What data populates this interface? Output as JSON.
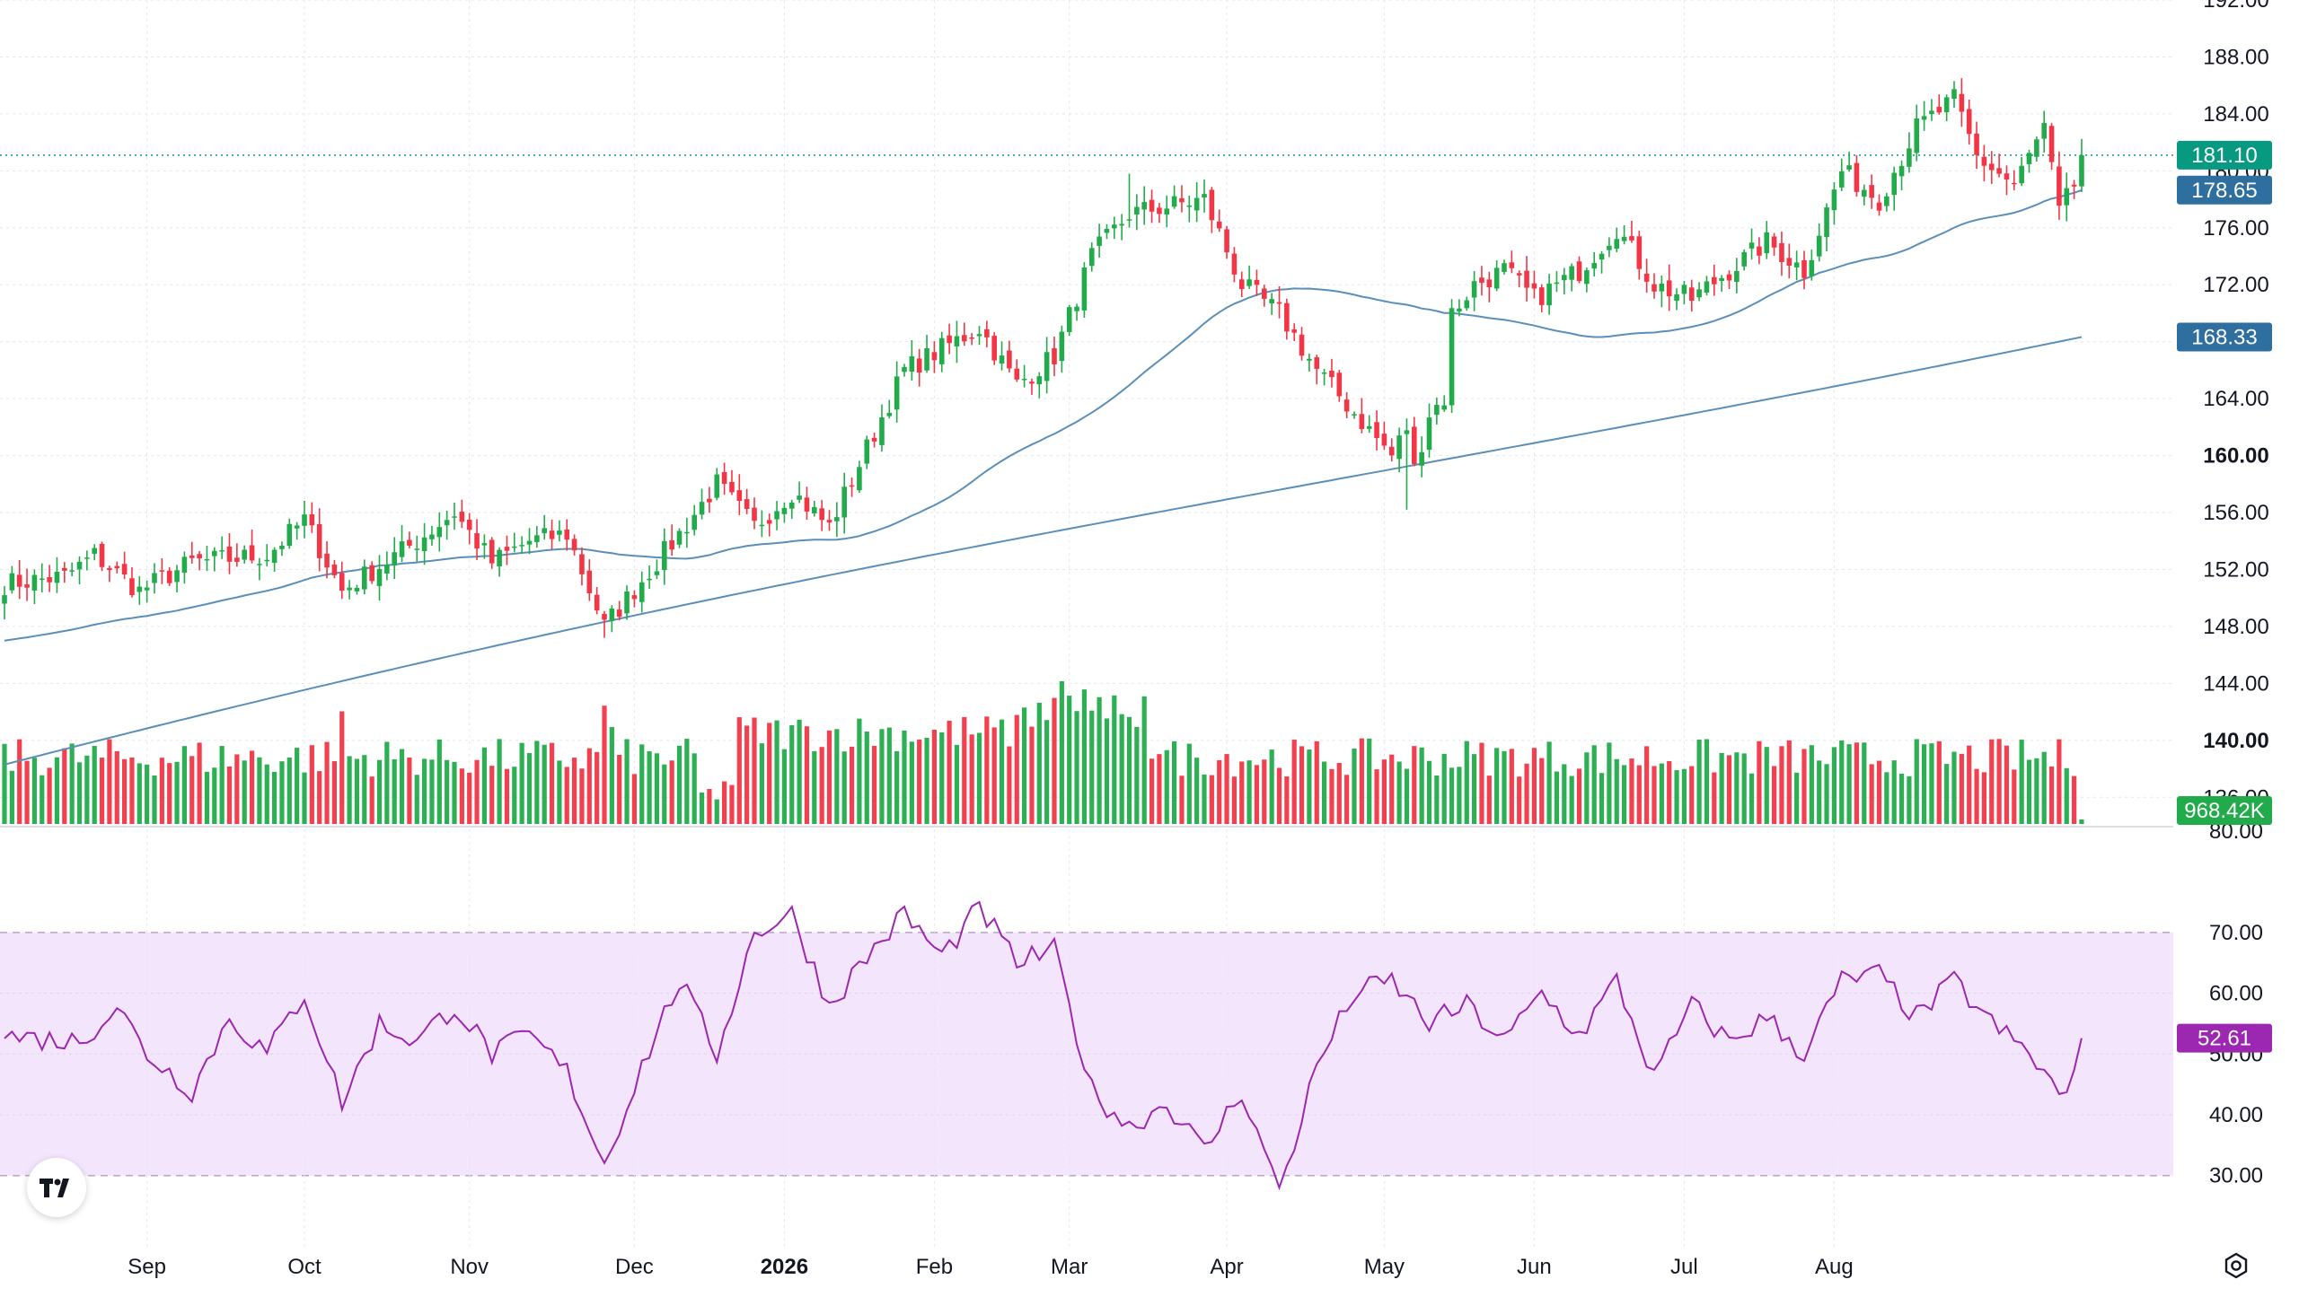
{
  "chart_data": {
    "type": "candlestick",
    "title": "",
    "x_tick_labels": [
      "Sep",
      "Oct",
      "Nov",
      "Dec",
      "2026",
      "Feb",
      "Mar",
      "Apr",
      "May",
      "Jun",
      "Jul",
      "Aug"
    ],
    "price_axis": {
      "ylim": [
        134,
        192
      ],
      "tick_labels": [
        "192.00",
        "188.00",
        "184.00",
        "180.00",
        "176.00",
        "172.00",
        "168.00",
        "164.00",
        "160.00",
        "156.00",
        "152.00",
        "148.00",
        "144.00",
        "140.00",
        "136.00"
      ],
      "bold_ticks": [
        "160.00",
        "140.00"
      ]
    },
    "current_price": {
      "label": "181.10",
      "value": 181.1,
      "color": "#089981"
    },
    "ma_fast_badge": {
      "label": "178.65",
      "value": 178.65,
      "color": "#2f6fa0"
    },
    "ma_slow_badge": {
      "label": "168.33",
      "value": 168.33,
      "color": "#2f6fa0"
    },
    "volume": {
      "last_label": "968.42K",
      "axis_label": "80.00",
      "ylim": [
        0,
        1.45
      ]
    },
    "rsi": {
      "ylim": [
        27,
        75
      ],
      "upper": 70,
      "lower": 30,
      "tick_labels": [
        "70.00",
        "60.00",
        "50.00",
        "40.00",
        "30.00"
      ],
      "last_label": "52.61",
      "last_value": 52.61,
      "line_color": "#9c27b0",
      "band_color": "#f3e5fc"
    },
    "colors": {
      "up": "#22ab4a",
      "down": "#f23645",
      "ma": "#5b8fb9",
      "grid": "#e4e6eb"
    },
    "pivots": [
      [
        0,
        151
      ],
      [
        8,
        151.5
      ],
      [
        12,
        153
      ],
      [
        18,
        150.5
      ],
      [
        25,
        152.5
      ],
      [
        35,
        153
      ],
      [
        40,
        155.5
      ],
      [
        45,
        150.5
      ],
      [
        55,
        154
      ],
      [
        60,
        156
      ],
      [
        65,
        152.5
      ],
      [
        70,
        154
      ],
      [
        75,
        154.5
      ],
      [
        80,
        148
      ],
      [
        90,
        154.5
      ],
      [
        95,
        158
      ],
      [
        100,
        155
      ],
      [
        105,
        157.5
      ],
      [
        110,
        155
      ],
      [
        120,
        166
      ],
      [
        130,
        169
      ],
      [
        135,
        165
      ],
      [
        140,
        167
      ],
      [
        145,
        174
      ],
      [
        150,
        177
      ],
      [
        160,
        178
      ],
      [
        165,
        172
      ],
      [
        170,
        170
      ],
      [
        175,
        166
      ],
      [
        180,
        163
      ],
      [
        185,
        160
      ],
      [
        187,
        162
      ],
      [
        188,
        159
      ],
      [
        190,
        163
      ],
      [
        192,
        164
      ],
      [
        193,
        170
      ],
      [
        196,
        172
      ],
      [
        200,
        173
      ],
      [
        204,
        171
      ],
      [
        210,
        173
      ],
      [
        215,
        176
      ],
      [
        220,
        172
      ],
      [
        225,
        171
      ],
      [
        230,
        173
      ],
      [
        235,
        175
      ],
      [
        240,
        173
      ],
      [
        245,
        180
      ],
      [
        250,
        178
      ],
      [
        255,
        183
      ],
      [
        260,
        185
      ],
      [
        263,
        181
      ],
      [
        268,
        179
      ],
      [
        272,
        183
      ],
      [
        274,
        177
      ],
      [
        276,
        179
      ],
      [
        277,
        180
      ]
    ]
  }
}
